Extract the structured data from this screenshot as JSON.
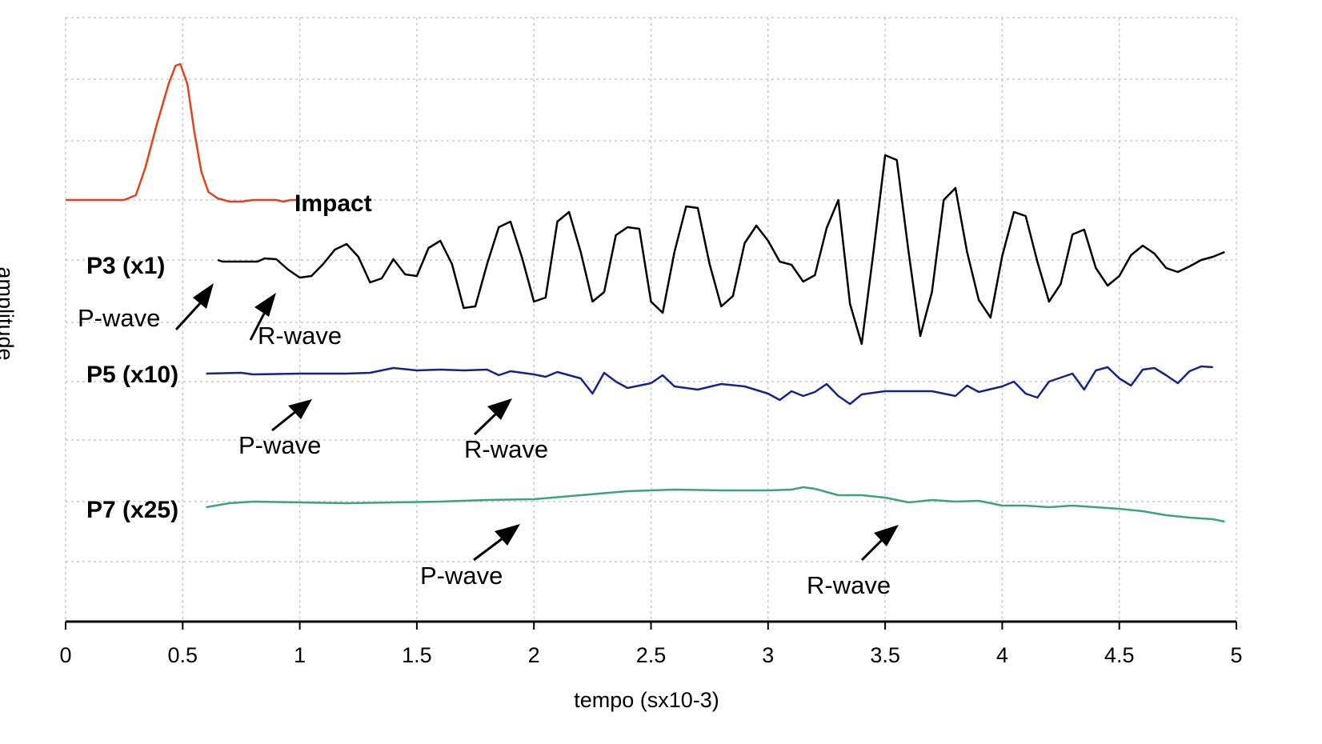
{
  "chart_data": {
    "type": "line",
    "title": "",
    "xlabel": "tempo (sx10-3)",
    "ylabel": "amplitude",
    "xlim": [
      0,
      5
    ],
    "x_ticks": [
      "0",
      "0.5",
      "1",
      "1.5",
      "2",
      "2.5",
      "3",
      "3.5",
      "4",
      "4.5",
      "5"
    ],
    "grid": "dotted, both axes",
    "series": [
      {
        "name": "Impact",
        "color": "#e8401c",
        "baseline": 0,
        "points": [
          [
            0,
            0
          ],
          [
            0.25,
            0
          ],
          [
            0.3,
            0.06
          ],
          [
            0.34,
            0.4
          ],
          [
            0.39,
            0.95
          ],
          [
            0.44,
            1.45
          ],
          [
            0.47,
            1.68
          ],
          [
            0.49,
            1.7
          ],
          [
            0.52,
            1.45
          ],
          [
            0.55,
            0.85
          ],
          [
            0.58,
            0.35
          ],
          [
            0.61,
            0.1
          ],
          [
            0.65,
            0.02
          ],
          [
            0.7,
            -0.02
          ],
          [
            0.75,
            -0.02
          ],
          [
            0.8,
            0
          ],
          [
            0.9,
            0
          ],
          [
            0.93,
            -0.02
          ],
          [
            0.96,
            0
          ],
          [
            1.0,
            0
          ],
          [
            5.0,
            0
          ]
        ]
      },
      {
        "name": "P3 (x1)",
        "color": "#000000",
        "baseline": 0,
        "points": [
          [
            0,
            0
          ],
          [
            0.65,
            0
          ],
          [
            0.67,
            -0.02
          ],
          [
            0.82,
            -0.02
          ],
          [
            0.85,
            0.02
          ],
          [
            0.9,
            0.01
          ],
          [
            0.95,
            -0.12
          ],
          [
            1.0,
            -0.22
          ],
          [
            1.05,
            -0.2
          ],
          [
            1.1,
            -0.05
          ],
          [
            1.15,
            0.13
          ],
          [
            1.2,
            0.2
          ],
          [
            1.25,
            0.04
          ],
          [
            1.3,
            -0.28
          ],
          [
            1.35,
            -0.23
          ],
          [
            1.4,
            0.01
          ],
          [
            1.45,
            -0.18
          ],
          [
            1.5,
            -0.2
          ],
          [
            1.55,
            0.15
          ],
          [
            1.6,
            0.24
          ],
          [
            1.65,
            -0.05
          ],
          [
            1.7,
            -0.6
          ],
          [
            1.75,
            -0.58
          ],
          [
            1.8,
            -0.05
          ],
          [
            1.85,
            0.41
          ],
          [
            1.9,
            0.48
          ],
          [
            1.95,
            0.02
          ],
          [
            2.0,
            -0.52
          ],
          [
            2.05,
            -0.47
          ],
          [
            2.1,
            0.48
          ],
          [
            2.15,
            0.6
          ],
          [
            2.2,
            0.1
          ],
          [
            2.25,
            -0.52
          ],
          [
            2.3,
            -0.4
          ],
          [
            2.35,
            0.31
          ],
          [
            2.4,
            0.41
          ],
          [
            2.45,
            0.39
          ],
          [
            2.5,
            -0.52
          ],
          [
            2.55,
            -0.66
          ],
          [
            2.6,
            0.1
          ],
          [
            2.65,
            0.67
          ],
          [
            2.7,
            0.65
          ],
          [
            2.75,
            -0.05
          ],
          [
            2.8,
            -0.58
          ],
          [
            2.85,
            -0.45
          ],
          [
            2.9,
            0.21
          ],
          [
            2.95,
            0.43
          ],
          [
            3.0,
            0.24
          ],
          [
            3.05,
            -0.02
          ],
          [
            3.1,
            -0.06
          ],
          [
            3.15,
            -0.27
          ],
          [
            3.2,
            -0.19
          ],
          [
            3.25,
            0.4
          ],
          [
            3.3,
            0.75
          ],
          [
            3.35,
            -0.55
          ],
          [
            3.4,
            -1.05
          ],
          [
            3.45,
            0.1
          ],
          [
            3.5,
            1.31
          ],
          [
            3.55,
            1.25
          ],
          [
            3.6,
            0.1
          ],
          [
            3.65,
            -0.95
          ],
          [
            3.7,
            -0.4
          ],
          [
            3.75,
            0.75
          ],
          [
            3.8,
            0.9
          ],
          [
            3.85,
            0.1
          ],
          [
            3.9,
            -0.5
          ],
          [
            3.95,
            -0.72
          ],
          [
            4.0,
            0.05
          ],
          [
            4.05,
            0.6
          ],
          [
            4.1,
            0.55
          ],
          [
            4.15,
            -0.02
          ],
          [
            4.2,
            -0.52
          ],
          [
            4.25,
            -0.3
          ],
          [
            4.3,
            0.32
          ],
          [
            4.35,
            0.38
          ],
          [
            4.4,
            -0.1
          ],
          [
            4.45,
            -0.32
          ],
          [
            4.5,
            -0.2
          ],
          [
            4.55,
            0.06
          ],
          [
            4.6,
            0.18
          ],
          [
            4.65,
            0.08
          ],
          [
            4.7,
            -0.1
          ],
          [
            4.75,
            -0.15
          ],
          [
            4.8,
            -0.08
          ],
          [
            4.85,
            0.0
          ],
          [
            4.9,
            0.04
          ],
          [
            4.95,
            0.1
          ]
        ]
      },
      {
        "name": "P5 (x10)",
        "color": "#14248c",
        "baseline": 0,
        "points": [
          [
            0,
            0
          ],
          [
            0.6,
            0
          ],
          [
            0.75,
            0.01
          ],
          [
            0.8,
            -0.01
          ],
          [
            1.0,
            0.0
          ],
          [
            1.2,
            0.0
          ],
          [
            1.3,
            0.01
          ],
          [
            1.4,
            0.07
          ],
          [
            1.5,
            0.04
          ],
          [
            1.6,
            0.05
          ],
          [
            1.7,
            0.04
          ],
          [
            1.8,
            0.05
          ],
          [
            1.85,
            -0.02
          ],
          [
            1.9,
            0.03
          ],
          [
            2.0,
            -0.01
          ],
          [
            2.05,
            -0.04
          ],
          [
            2.1,
            0.02
          ],
          [
            2.2,
            -0.06
          ],
          [
            2.25,
            -0.25
          ],
          [
            2.3,
            0.01
          ],
          [
            2.35,
            -0.1
          ],
          [
            2.4,
            -0.18
          ],
          [
            2.5,
            -0.12
          ],
          [
            2.55,
            -0.02
          ],
          [
            2.6,
            -0.16
          ],
          [
            2.7,
            -0.2
          ],
          [
            2.8,
            -0.13
          ],
          [
            2.9,
            -0.16
          ],
          [
            3.0,
            -0.25
          ],
          [
            3.05,
            -0.33
          ],
          [
            3.1,
            -0.22
          ],
          [
            3.15,
            -0.28
          ],
          [
            3.2,
            -0.23
          ],
          [
            3.25,
            -0.13
          ],
          [
            3.3,
            -0.28
          ],
          [
            3.35,
            -0.38
          ],
          [
            3.4,
            -0.26
          ],
          [
            3.5,
            -0.22
          ],
          [
            3.6,
            -0.22
          ],
          [
            3.7,
            -0.22
          ],
          [
            3.8,
            -0.28
          ],
          [
            3.85,
            -0.15
          ],
          [
            3.9,
            -0.23
          ],
          [
            4.0,
            -0.16
          ],
          [
            4.05,
            -0.1
          ],
          [
            4.1,
            -0.25
          ],
          [
            4.15,
            -0.3
          ],
          [
            4.2,
            -0.1
          ],
          [
            4.3,
            0.0
          ],
          [
            4.35,
            -0.2
          ],
          [
            4.4,
            0.04
          ],
          [
            4.45,
            0.08
          ],
          [
            4.5,
            -0.06
          ],
          [
            4.55,
            -0.15
          ],
          [
            4.6,
            0.05
          ],
          [
            4.65,
            0.07
          ],
          [
            4.7,
            -0.02
          ],
          [
            4.75,
            -0.12
          ],
          [
            4.8,
            0.03
          ],
          [
            4.85,
            0.09
          ],
          [
            4.9,
            0.08
          ]
        ]
      },
      {
        "name": "P7 (x25)",
        "color": "#3aa57a",
        "baseline": 0,
        "points": [
          [
            0,
            0
          ],
          [
            0.6,
            0
          ],
          [
            0.7,
            0.05
          ],
          [
            0.8,
            0.07
          ],
          [
            1.0,
            0.06
          ],
          [
            1.2,
            0.05
          ],
          [
            1.4,
            0.06
          ],
          [
            1.6,
            0.07
          ],
          [
            1.8,
            0.09
          ],
          [
            2.0,
            0.1
          ],
          [
            2.2,
            0.15
          ],
          [
            2.4,
            0.2
          ],
          [
            2.6,
            0.22
          ],
          [
            2.8,
            0.21
          ],
          [
            3.0,
            0.21
          ],
          [
            3.1,
            0.22
          ],
          [
            3.15,
            0.25
          ],
          [
            3.2,
            0.23
          ],
          [
            3.3,
            0.15
          ],
          [
            3.4,
            0.15
          ],
          [
            3.5,
            0.12
          ],
          [
            3.6,
            0.06
          ],
          [
            3.7,
            0.09
          ],
          [
            3.8,
            0.07
          ],
          [
            3.9,
            0.08
          ],
          [
            4.0,
            0.02
          ],
          [
            4.1,
            0.02
          ],
          [
            4.2,
            0.0
          ],
          [
            4.3,
            0.02
          ],
          [
            4.4,
            0.0
          ],
          [
            4.5,
            -0.02
          ],
          [
            4.6,
            -0.05
          ],
          [
            4.7,
            -0.1
          ],
          [
            4.8,
            -0.13
          ],
          [
            4.9,
            -0.15
          ],
          [
            4.95,
            -0.18
          ]
        ]
      }
    ],
    "trace_labels": {
      "impact": "Impact",
      "p3": "P3 (x1)",
      "p5": "P5 (x10)",
      "p7": "P7 (x25)"
    },
    "annotations": [
      {
        "text": "P-wave",
        "trace": "P3 (x1)",
        "x": 0.65
      },
      {
        "text": "R-wave",
        "trace": "P3 (x1)",
        "x": 0.9
      },
      {
        "text": "P-wave",
        "trace": "P5 (x10)",
        "x": 1.05
      },
      {
        "text": "R-wave",
        "trace": "P5 (x10)",
        "x": 1.95
      },
      {
        "text": "P-wave",
        "trace": "P7 (x25)",
        "x": 1.95
      },
      {
        "text": "R-wave",
        "trace": "P7 (x25)",
        "x": 3.6
      }
    ]
  }
}
